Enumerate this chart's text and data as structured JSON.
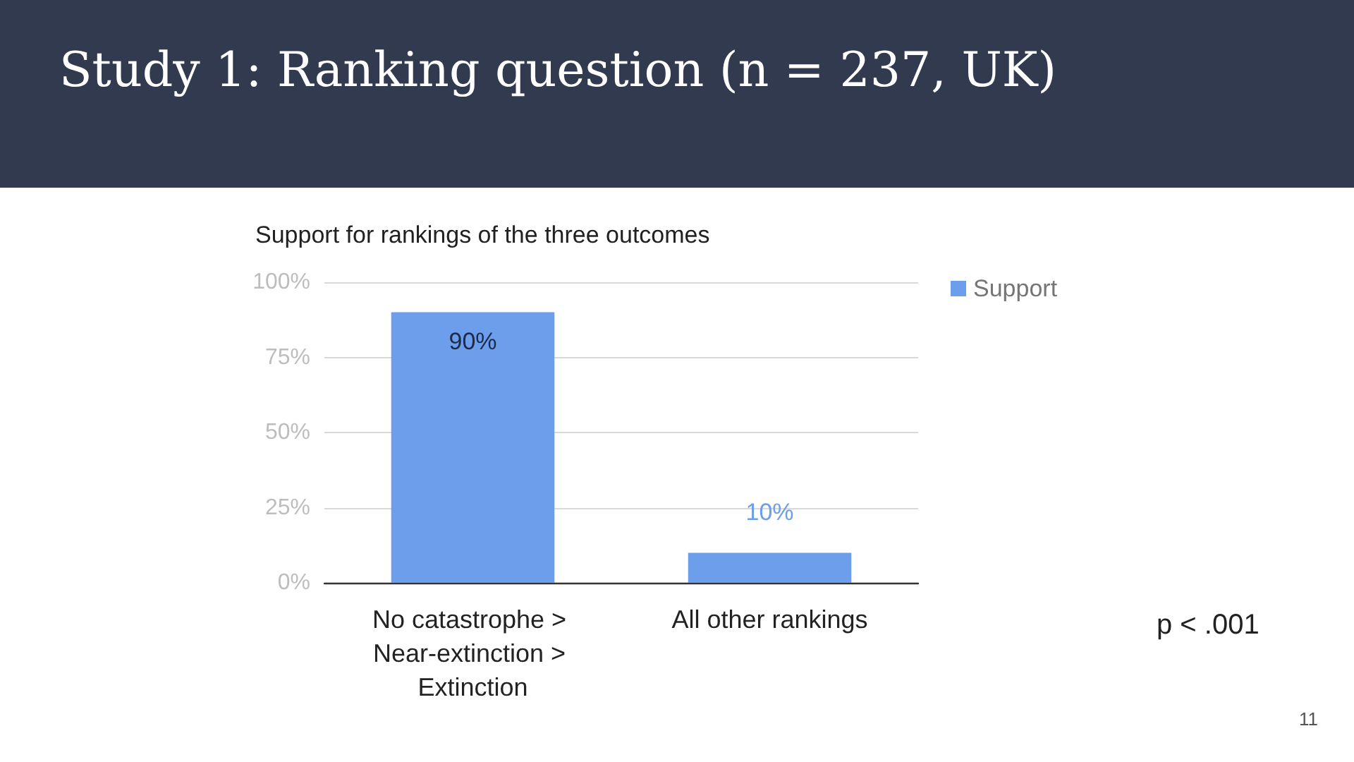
{
  "chart_data": {
    "type": "bar",
    "title": "Study 1: Ranking question (n = 237, UK)",
    "subtitle": "Support for rankings of the three outcomes",
    "categories": [
      "No catastrophe > Near-extinction > Extinction",
      "All other rankings"
    ],
    "series": [
      {
        "name": "Support",
        "color": "#6d9eeb",
        "values": [
          90,
          10
        ],
        "value_labels": [
          "90%",
          "10%"
        ]
      }
    ],
    "ylim": [
      0,
      100
    ],
    "yticks": [
      {
        "value": 0,
        "label": "0%"
      },
      {
        "value": 25,
        "label": "25%"
      },
      {
        "value": 50,
        "label": "50%"
      },
      {
        "value": 75,
        "label": "75%"
      },
      {
        "value": 100,
        "label": "100%"
      }
    ],
    "grid": "y",
    "legend": "top right",
    "annotations": [
      "p < .001",
      "11"
    ]
  }
}
